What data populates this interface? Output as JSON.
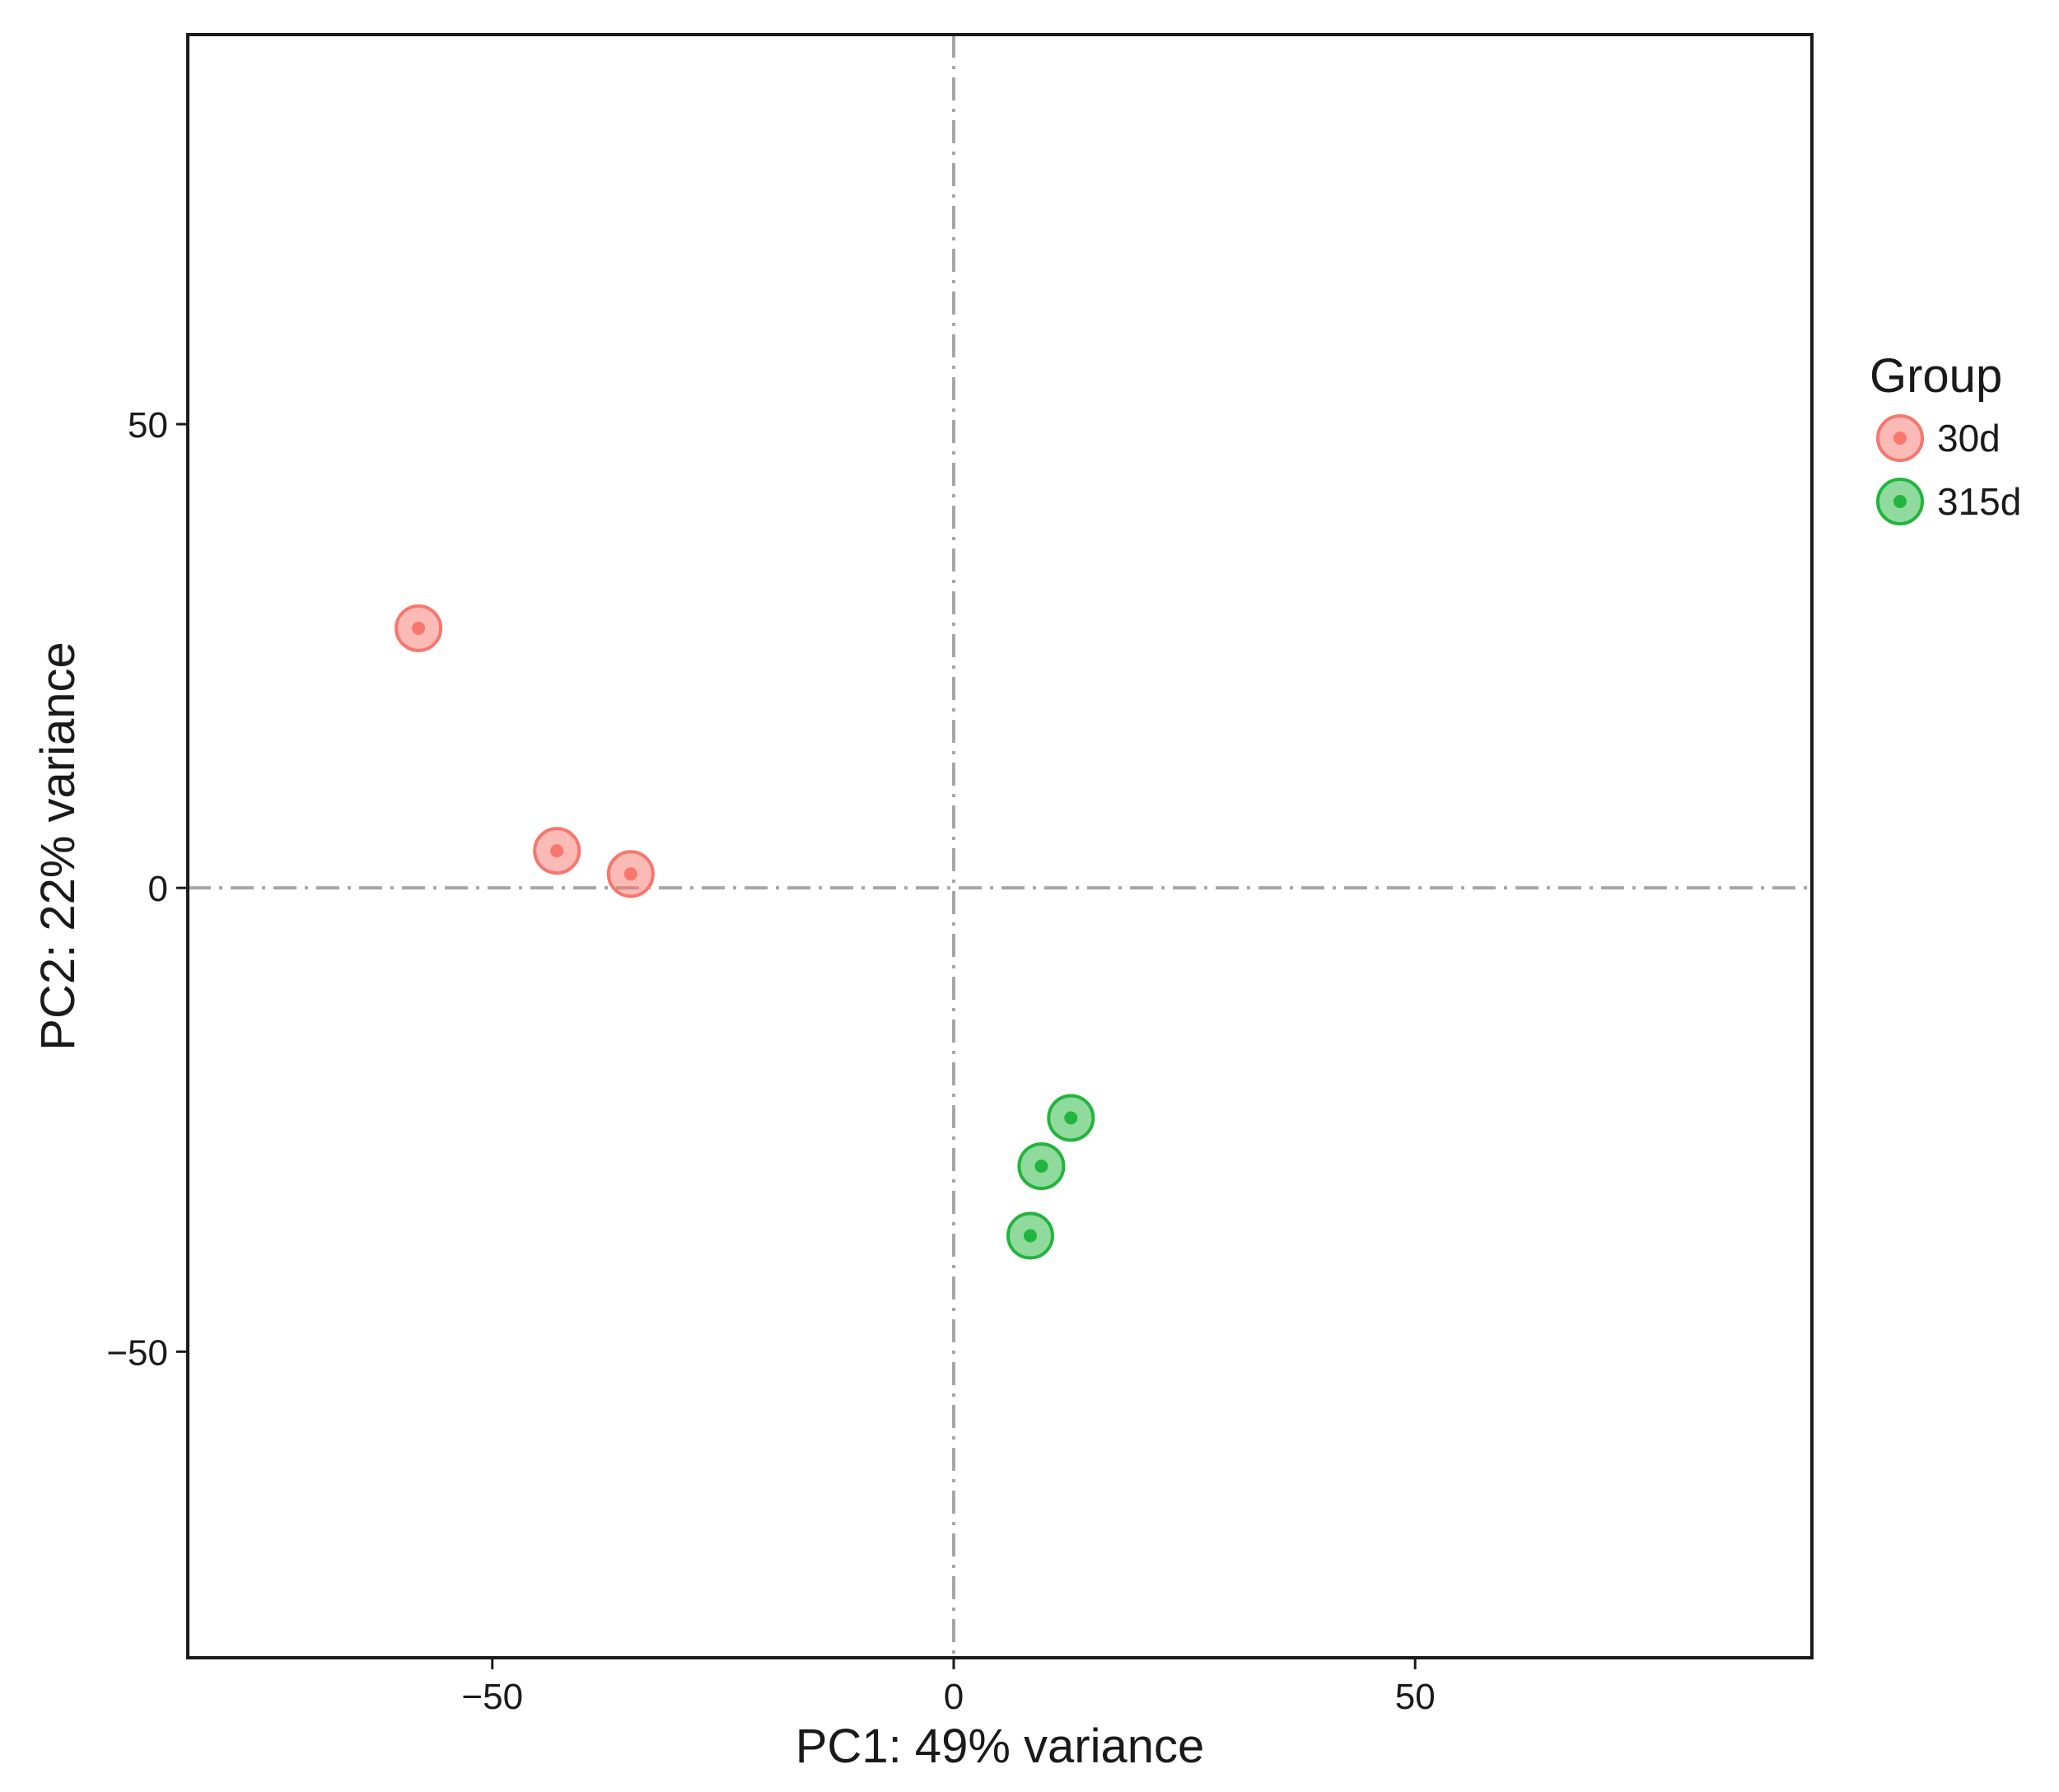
{
  "chart_data": {
    "type": "scatter",
    "title": "",
    "xlabel": "PC1: 49% variance",
    "ylabel": "PC2: 22% variance",
    "xlim": [
      -83,
      93
    ],
    "ylim": [
      -83,
      92
    ],
    "xticks": [
      -50,
      0,
      50
    ],
    "yticks": [
      -50,
      0,
      50
    ],
    "xtick_labels": [
      "−50",
      "0",
      "50"
    ],
    "ytick_labels": [
      "−50",
      "0",
      "50"
    ],
    "reference_lines": {
      "x": 0,
      "y": 0,
      "style": "dashdot"
    },
    "grid": false,
    "legend": {
      "title": "Group",
      "placement": "right"
    },
    "series": [
      {
        "name": "30d",
        "color": "#f8766d",
        "points": [
          {
            "x": -58,
            "y": 28
          },
          {
            "x": -43,
            "y": 4
          },
          {
            "x": -35,
            "y": 1.5
          }
        ]
      },
      {
        "name": "315d",
        "color": "#22b53d",
        "points": [
          {
            "x": 12.7,
            "y": -24.8
          },
          {
            "x": 9.5,
            "y": -30
          },
          {
            "x": 8.3,
            "y": -37.5
          }
        ]
      }
    ]
  }
}
